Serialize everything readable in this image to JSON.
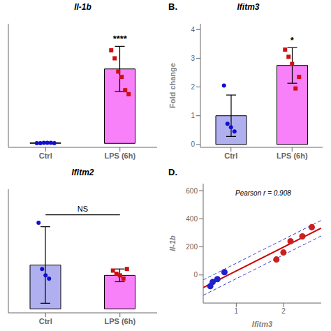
{
  "chart_data": [
    {
      "type": "bar",
      "title": "Il-1b",
      "categories": [
        "Ctrl",
        "LPS (6h)"
      ],
      "values": [
        0.02,
        2.8
      ],
      "errors": [
        0.015,
        0.85
      ],
      "colors": [
        "#c0b8f8",
        "#f880f8"
      ],
      "dots": [
        [
          0.01,
          0.01,
          0.02,
          0.02,
          0.02,
          0.01
        ],
        [
          3.5,
          3.2,
          2.7,
          2.5,
          2.0,
          1.85
        ]
      ],
      "dot_colors": [
        "#1010cc",
        "#cc1010"
      ],
      "significance": "****",
      "ylim": [
        -0.15,
        4.5
      ],
      "tick_labels": "x"
    },
    {
      "type": "bar",
      "panel_label": "B.",
      "title": "Ifitm3",
      "ylabel": "Fold change",
      "categories": [
        "Ctrl",
        "LPS (6h)"
      ],
      "values": [
        1.0,
        2.75
      ],
      "errors": [
        0.72,
        0.62
      ],
      "colors": [
        "#b0b0f0",
        "#f880f8"
      ],
      "dots": [
        [
          2.05,
          0.72,
          0.6,
          0.45
        ],
        [
          3.3,
          3.05,
          2.8,
          1.95,
          2.35
        ]
      ],
      "dot_colors": [
        "#1010cc",
        "#cc1010"
      ],
      "significance": "*",
      "ylim": [
        -0.1,
        4.2
      ],
      "yticks": [
        0,
        1,
        2,
        3,
        4
      ]
    },
    {
      "type": "bar",
      "title": "Ifitm2",
      "categories": [
        "Ctrl",
        "LPS (6h)"
      ],
      "values": [
        0.55,
        0.42
      ],
      "errors": [
        0.48,
        0.08
      ],
      "colors": [
        "#b0b0f0",
        "#f880f8"
      ],
      "dots": [
        [
          1.08,
          0.5,
          0.42,
          0.38
        ],
        [
          0.48,
          0.44,
          0.42,
          0.38,
          0.5
        ]
      ],
      "dot_colors": [
        "#1010cc",
        "#cc1010"
      ],
      "significance": "NS",
      "significance_y": 1.18,
      "ylim": [
        -0.05,
        1.5
      ],
      "tick_labels": "x"
    },
    {
      "type": "scatter",
      "panel_label": "D.",
      "xlabel": "Ifitm3",
      "ylabel": "Il-1b",
      "x": [
        0.45,
        0.5,
        0.6,
        0.75,
        1.85,
        2.0,
        2.15,
        2.4,
        2.6
      ],
      "values": [
        -80,
        -50,
        -30,
        20,
        110,
        160,
        240,
        275,
        340
      ],
      "colors": [
        "#2020cc",
        "#2020cc",
        "#2020cc",
        "#2020cc",
        "#cc2020",
        "#cc2020",
        "#cc2020",
        "#cc2020",
        "#cc2020"
      ],
      "lines": [
        {
          "type": "line",
          "x": [
            0.3,
            2.8
          ],
          "values": [
            -89.91,
            333.24
          ],
          "color": "#cc0000",
          "line_style": "solid"
        },
        {
          "type": "line",
          "x": [
            0.3,
            2.8
          ],
          "values": [
            -34.91,
            388.24
          ],
          "color": "#4444cc",
          "line_style": "dashed"
        },
        {
          "type": "line",
          "x": [
            0.3,
            2.8
          ],
          "values": [
            -144.91,
            278.24
          ],
          "color": "#4444cc",
          "line_style": "dashed"
        }
      ],
      "annotations": [
        "Pearson r = 0.908"
      ],
      "xlim": [
        0.3,
        2.8
      ],
      "ylim": [
        -200,
        650
      ],
      "xticks": [
        1,
        2
      ],
      "yticks": [
        0,
        200,
        400,
        600
      ]
    }
  ]
}
